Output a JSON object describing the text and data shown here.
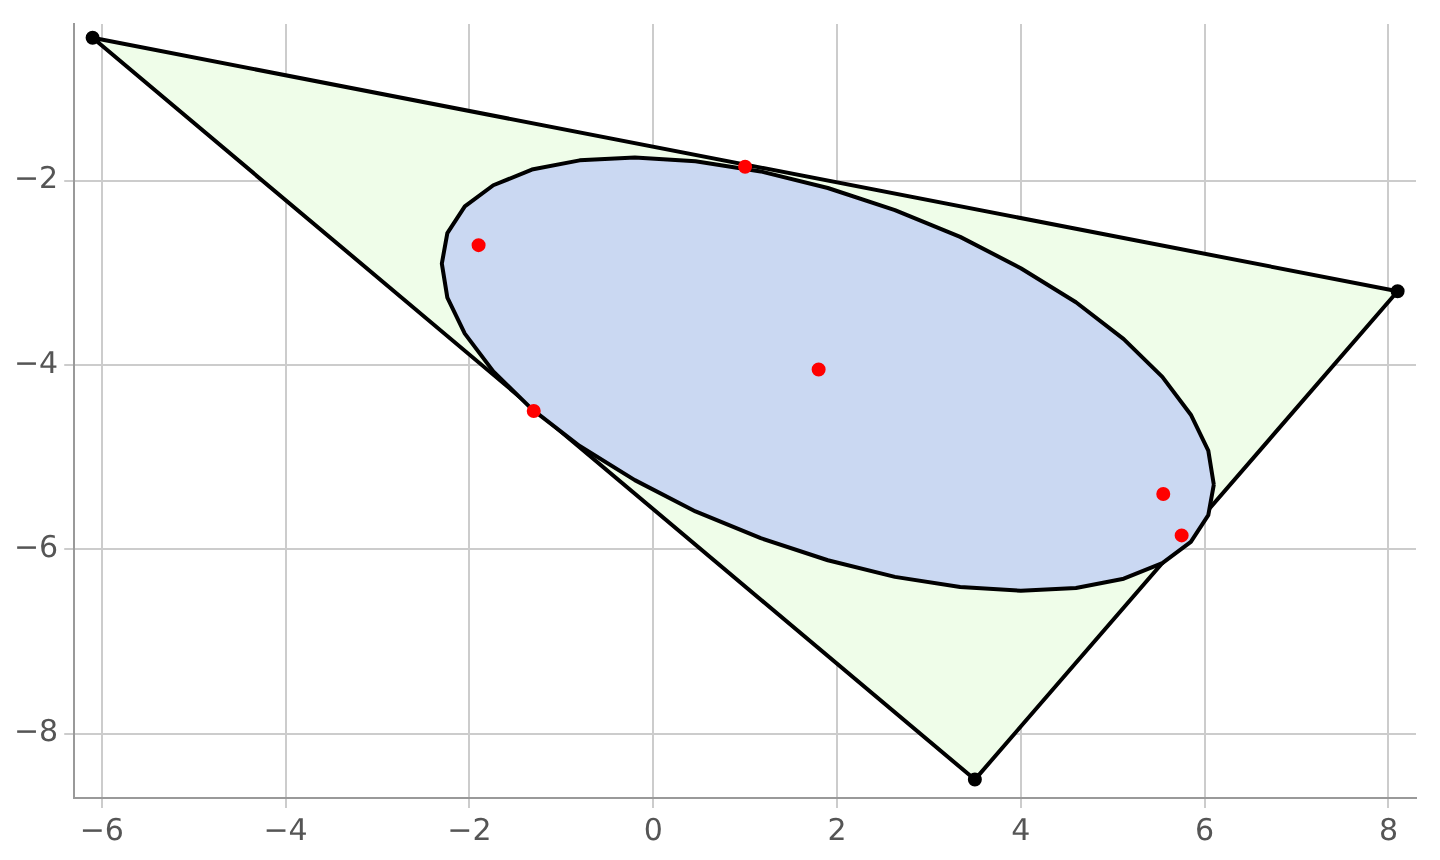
{
  "chart_data": {
    "type": "scatter",
    "xlim": [
      -6.3,
      8.3
    ],
    "ylim": [
      -8.7,
      -0.3
    ],
    "xticks": [
      -6,
      -4,
      -2,
      0,
      2,
      4,
      6,
      8
    ],
    "yticks": [
      -8,
      -6,
      -4,
      -2
    ],
    "grid": true,
    "legend": false,
    "marker": "circle",
    "series": [
      {
        "type": "area",
        "marker": "none",
        "color": "#effde9",
        "x": [
          -6.1,
          8.1,
          3.5,
          -6.1
        ],
        "values": [
          -0.45,
          -3.2,
          -8.5,
          -0.45
        ]
      },
      {
        "type": "area",
        "marker": "none",
        "color": "#cad8f2",
        "x": [
          6.1,
          6.04,
          5.85,
          5.54,
          5.12,
          4.6,
          4.0,
          3.34,
          2.63,
          1.9,
          1.17,
          0.46,
          -0.2,
          -0.8,
          -1.32,
          -1.74,
          -2.05,
          -2.24,
          -2.3,
          -2.24,
          -2.05,
          -1.74,
          -1.32,
          -0.8,
          -0.2,
          0.46,
          1.17,
          1.9,
          2.63,
          3.34,
          4.0,
          4.6,
          5.12,
          5.54,
          5.85,
          6.04,
          6.1
        ],
        "values": [
          -5.3,
          -4.93,
          -4.54,
          -4.13,
          -3.72,
          -3.32,
          -2.95,
          -2.61,
          -2.32,
          -2.08,
          -1.9,
          -1.79,
          -1.75,
          -1.78,
          -1.88,
          -2.05,
          -2.28,
          -2.57,
          -2.9,
          -3.27,
          -3.66,
          -4.07,
          -4.48,
          -4.88,
          -5.25,
          -5.59,
          -5.88,
          -6.12,
          -6.3,
          -6.41,
          -6.45,
          -6.42,
          -6.32,
          -6.15,
          -5.92,
          -5.63,
          -5.3
        ]
      },
      {
        "type": "scatter",
        "color": "#000000",
        "x": [
          -6.1,
          8.1,
          3.5
        ],
        "values": [
          -0.45,
          -3.2,
          -8.5
        ]
      },
      {
        "type": "scatter",
        "color": "#ff0000",
        "x": [
          1.0,
          -1.9,
          1.8,
          -1.3,
          5.55,
          5.75
        ],
        "values": [
          -1.85,
          -2.7,
          -4.05,
          -4.5,
          -5.4,
          -5.85
        ]
      }
    ]
  }
}
